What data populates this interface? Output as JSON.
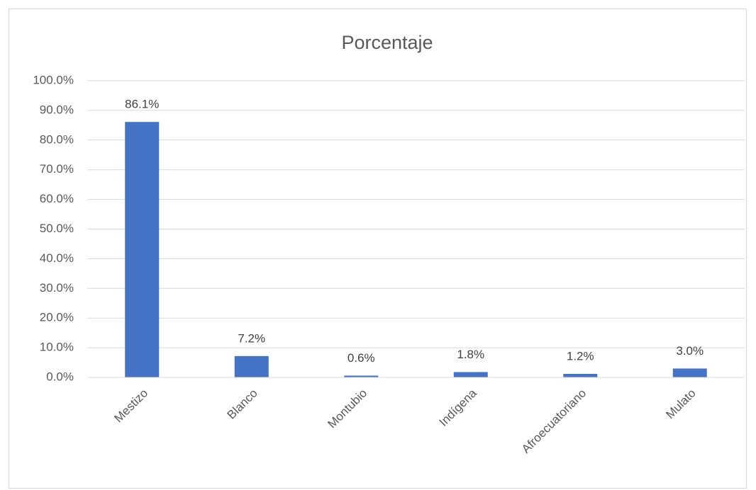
{
  "chart_data": {
    "type": "bar",
    "title": "Porcentaje",
    "categories": [
      "Mestizo",
      "Blanco",
      "Montubio",
      "Indígena",
      "Afroecuatoriano",
      "Mulato"
    ],
    "values": [
      86.1,
      7.2,
      0.6,
      1.8,
      1.2,
      3.0
    ],
    "value_labels": [
      "86.1%",
      "7.2%",
      "0.6%",
      "1.8%",
      "1.2%",
      "3.0%"
    ],
    "color": "#4472c4",
    "ylim": [
      0,
      100
    ],
    "yticks": [
      {
        "value": 0,
        "label": "0.0%"
      },
      {
        "value": 10,
        "label": "10.0%"
      },
      {
        "value": 20,
        "label": "20.0%"
      },
      {
        "value": 30,
        "label": "30.0%"
      },
      {
        "value": 40,
        "label": "40.0%"
      },
      {
        "value": 50,
        "label": "50.0%"
      },
      {
        "value": 60,
        "label": "60.0%"
      },
      {
        "value": 70,
        "label": "70.0%"
      },
      {
        "value": 80,
        "label": "80.0%"
      },
      {
        "value": 90,
        "label": "90.0%"
      },
      {
        "value": 100,
        "label": "100.0%"
      }
    ],
    "grid": true
  }
}
